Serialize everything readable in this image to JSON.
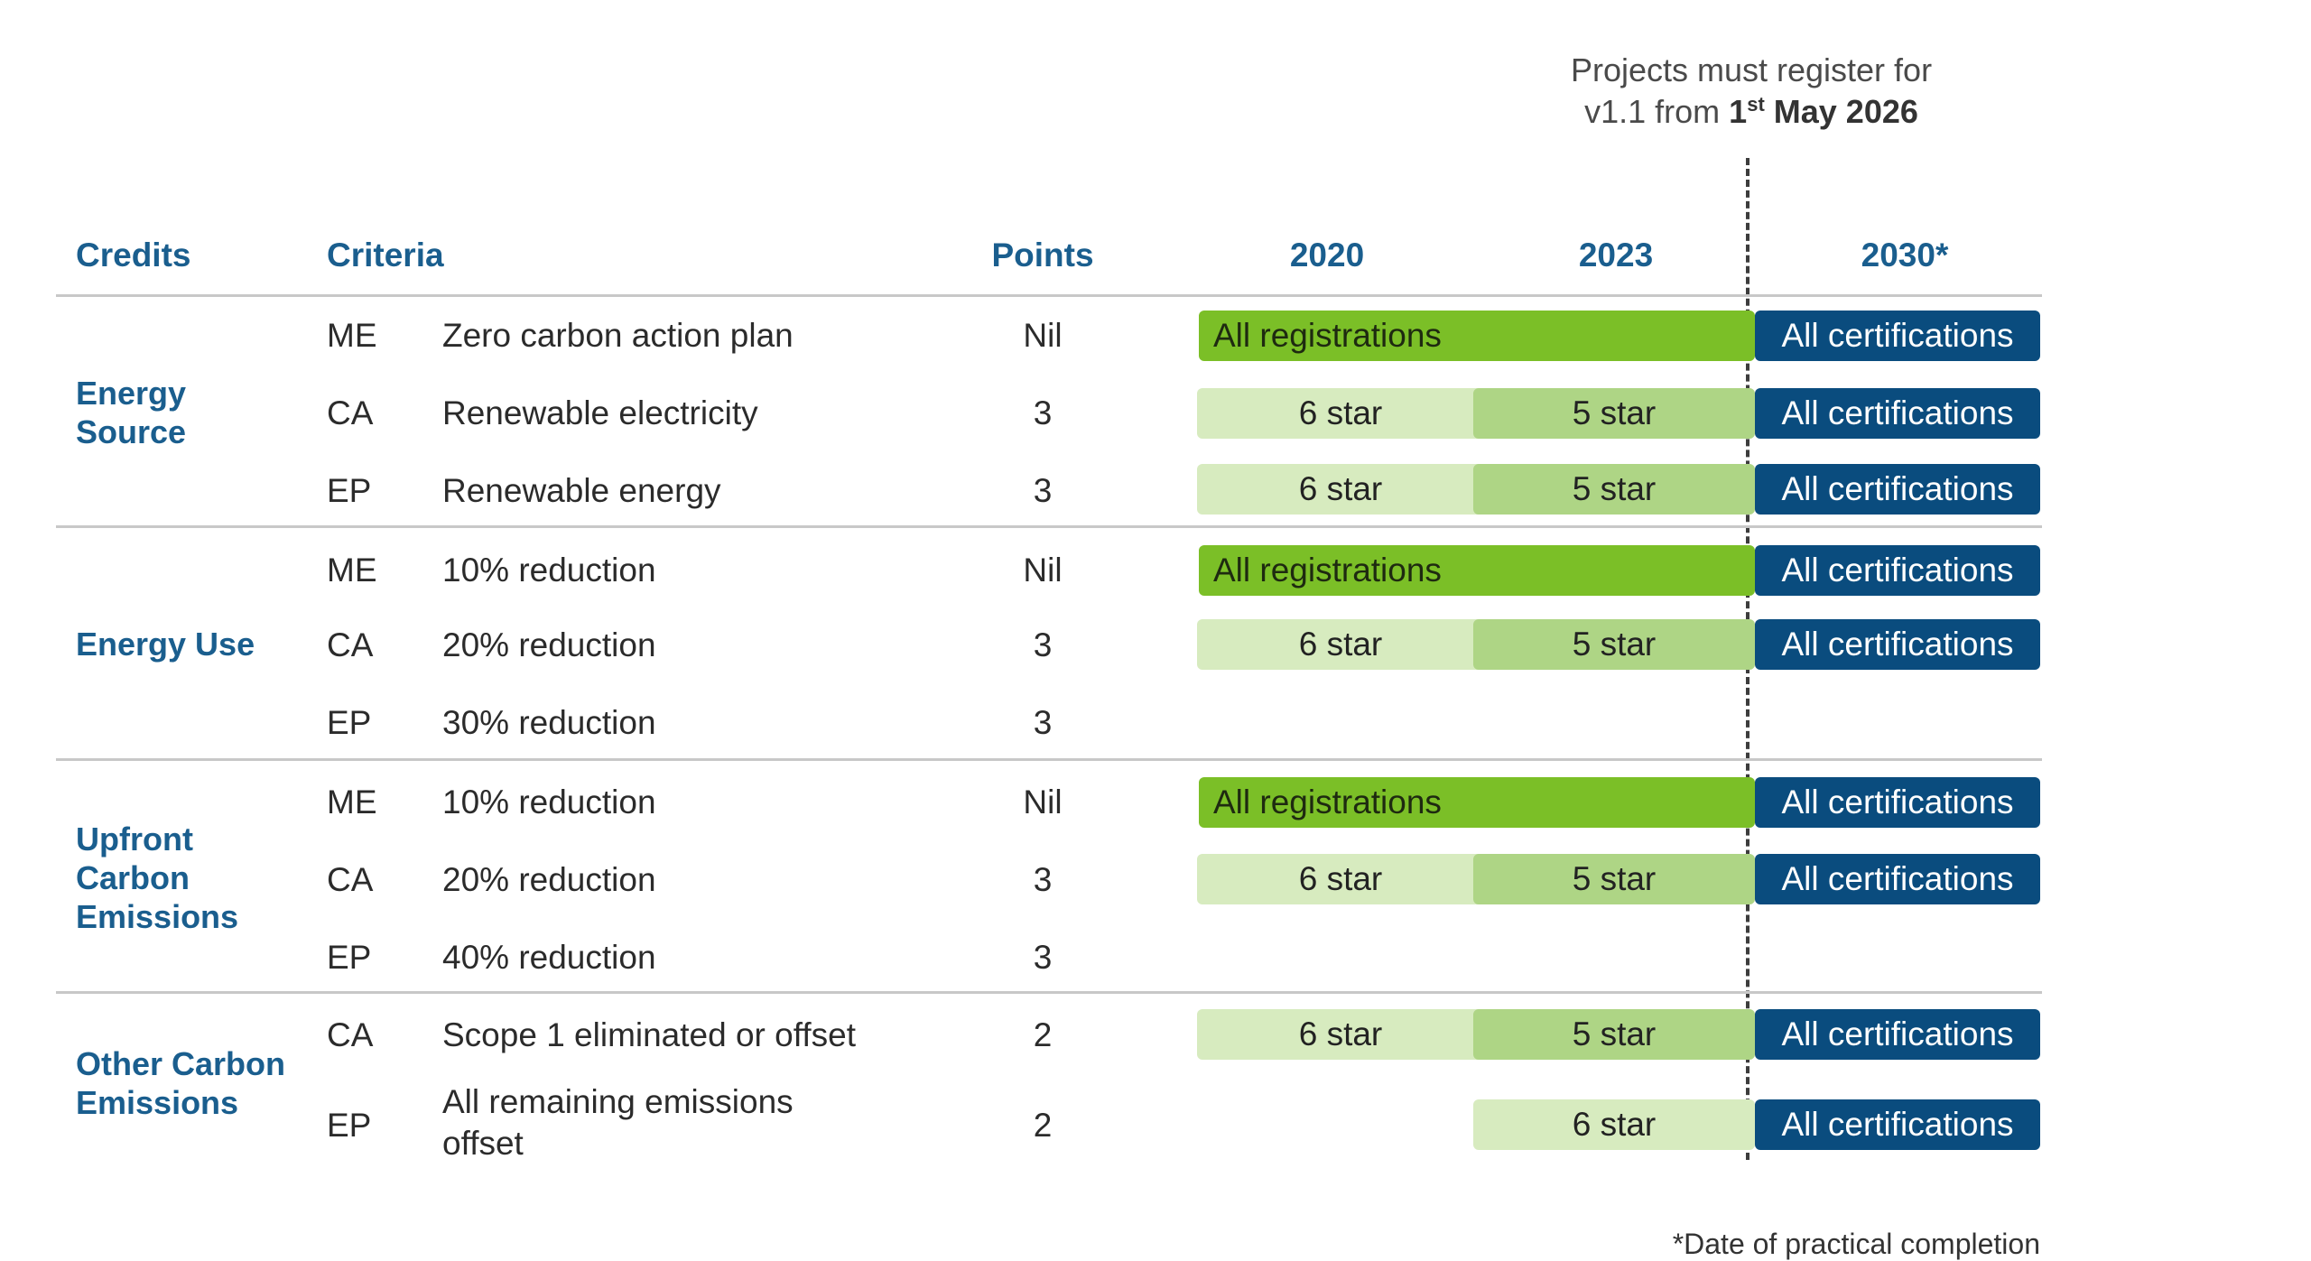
{
  "note": {
    "line1": "Projects must register for",
    "line2_pre": "v1.1 from ",
    "line2_day": "1",
    "line2_sup": "st",
    "line2_post": " May 2026"
  },
  "headers": {
    "credits": "Credits",
    "criteria": "Criteria",
    "points": "Points",
    "y2020": "2020",
    "y2023": "2023",
    "y2030": "2030*"
  },
  "groups": [
    {
      "label": "Energy Source",
      "rows": [
        {
          "code": "ME",
          "criteria": "Zero carbon action plan",
          "points": "Nil",
          "reg": "All registrations",
          "cert": "All certifications"
        },
        {
          "code": "CA",
          "criteria": "Renewable electricity",
          "points": "3",
          "s2020": "6 star",
          "s2023": "5 star",
          "cert": "All certifications"
        },
        {
          "code": "EP",
          "criteria": "Renewable energy",
          "points": "3",
          "s2020": "6 star",
          "s2023": "5 star",
          "cert": "All certifications"
        }
      ]
    },
    {
      "label": "Energy Use",
      "rows": [
        {
          "code": "ME",
          "criteria": "10% reduction",
          "points": "Nil",
          "reg": "All registrations",
          "cert": "All certifications"
        },
        {
          "code": "CA",
          "criteria": "20% reduction",
          "points": "3",
          "s2020": "6 star",
          "s2023": "5 star",
          "cert": "All certifications"
        },
        {
          "code": "EP",
          "criteria": "30% reduction",
          "points": "3"
        }
      ]
    },
    {
      "label": "Upfront Carbon Emissions",
      "rows": [
        {
          "code": "ME",
          "criteria": "10% reduction",
          "points": "Nil",
          "reg": "All registrations",
          "cert": "All certifications"
        },
        {
          "code": "CA",
          "criteria": "20% reduction",
          "points": "3",
          "s2020": "6 star",
          "s2023": "5 star",
          "cert": "All certifications"
        },
        {
          "code": "EP",
          "criteria": "40% reduction",
          "points": "3"
        }
      ]
    },
    {
      "label": "Other Carbon Emissions",
      "rows": [
        {
          "code": "CA",
          "criteria": "Scope 1 eliminated or offset",
          "points": "2",
          "s2020": "6 star",
          "s2023": "5 star",
          "cert": "All certifications"
        },
        {
          "code": "EP",
          "criteria": "All remaining emissions offset",
          "points": "2",
          "s2023": "6 star",
          "cert": "All certifications"
        }
      ]
    }
  ],
  "footnote": "*Date of practical completion",
  "colors": {
    "heading_blue": "#1a5e8e",
    "registration_green": "#7bbf27",
    "star_light_green": "#d7ebbf",
    "star_mid_green": "#aed585",
    "certification_blue": "#0a4c7e"
  }
}
